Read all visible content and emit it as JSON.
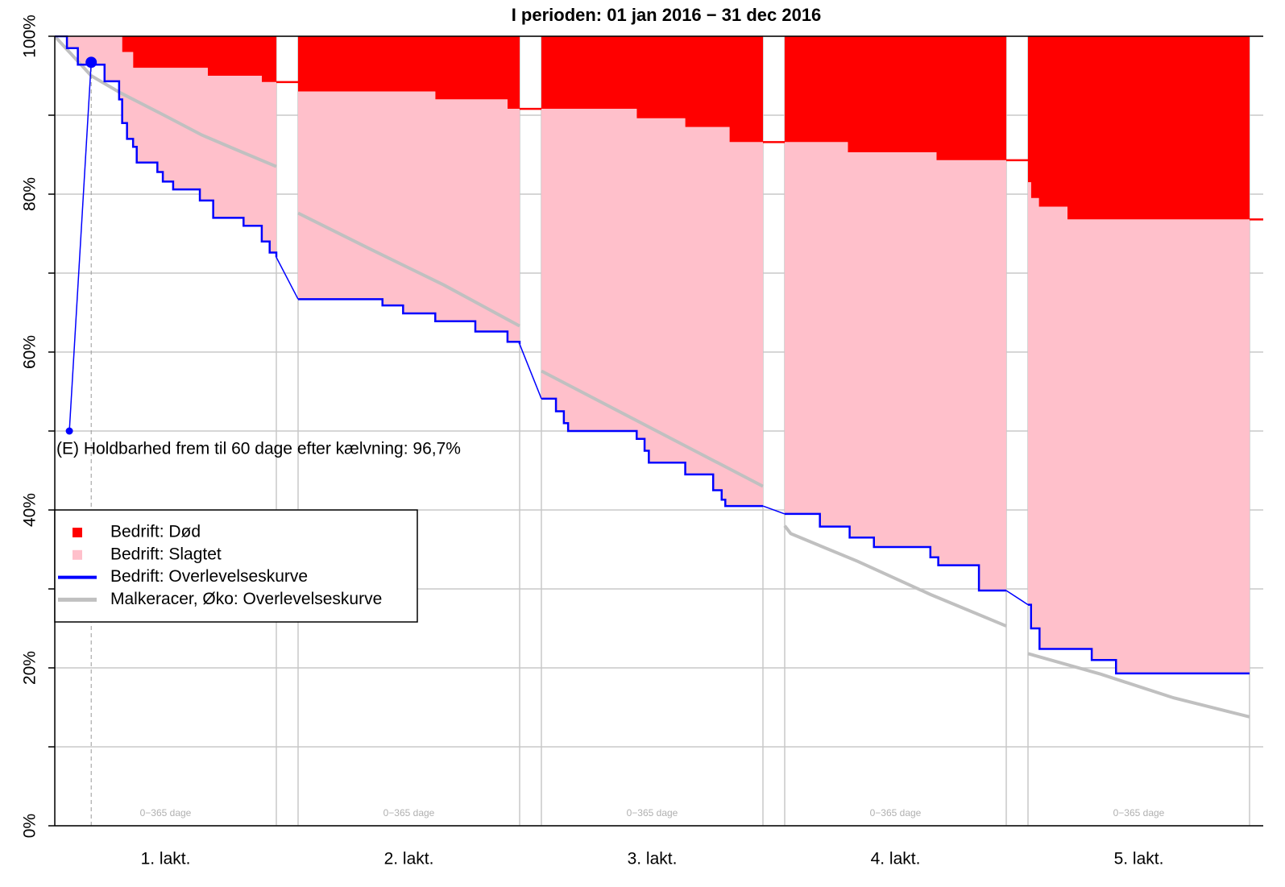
{
  "chart_data": {
    "type": "survival",
    "title": "I perioden: 01 jan 2016 − 31 dec 2016",
    "ylim": [
      0,
      100
    ],
    "yticks": [
      {
        "value": 0,
        "label": "0%"
      },
      {
        "value": 20,
        "label": "20%"
      },
      {
        "value": 40,
        "label": "40%"
      },
      {
        "value": 60,
        "label": "60%"
      },
      {
        "value": 80,
        "label": "80%"
      },
      {
        "value": 100,
        "label": "100%"
      }
    ],
    "minor_yticks": [
      10,
      30,
      50,
      70,
      90
    ],
    "xlim": [
      0,
      365
    ],
    "grid": true,
    "step": true,
    "series": [
      {
        "name": "Bedrift: Død",
        "color": "#ff0000",
        "marker": "square"
      },
      {
        "name": "Bedrift: Slagtet",
        "color": "#ffc0cb",
        "marker": "square"
      },
      {
        "name": "Bedrift: Overlevelseskurve",
        "color": "#0000ff",
        "marker": "line"
      },
      {
        "name": "Malkeracer, Øko: Overlevelseskurve",
        "color": "#c0c0c0",
        "marker": "line"
      }
    ],
    "lactations": [
      {
        "label": "1. lakt.",
        "range_label": "0−365 dage",
        "survival": {
          "days": [
            0,
            20,
            38,
            82,
            106,
            111,
            119,
            129,
            135,
            169,
            178,
            195,
            239,
            261,
            311,
            341,
            354,
            365
          ],
          "values": [
            100,
            98.5,
            96.4,
            94.3,
            92,
            89,
            87,
            86,
            84,
            82.8,
            81.6,
            80.6,
            79.2,
            77,
            76,
            74,
            72.6,
            72
          ]
        },
        "dead": {
          "days": [
            0,
            111,
            129,
            252,
            341
          ],
          "values": [
            100,
            98,
            96,
            95,
            94.2
          ]
        },
        "reference": {
          "days": [
            0,
            60,
            109,
            180,
            242,
            300,
            365
          ],
          "values": [
            100,
            95,
            92.8,
            90,
            87.5,
            85.6,
            83.5
          ]
        }
      },
      {
        "label": "2. lakt.",
        "range_label": "0−365 dage",
        "survival": {
          "days": [
            0,
            139,
            173,
            226,
            292,
            345,
            365
          ],
          "values": [
            66.7,
            65.9,
            64.9,
            63.9,
            62.6,
            61.3,
            61
          ]
        },
        "dead": {
          "days": [
            0,
            226,
            345
          ],
          "values": [
            93,
            92,
            90.8
          ]
        },
        "reference": {
          "days": [
            0,
            120,
            240,
            365
          ],
          "values": [
            77.6,
            73,
            68.5,
            63.3
          ]
        }
      },
      {
        "label": "3. lakt.",
        "range_label": "0−365 dage",
        "survival": {
          "days": [
            0,
            24,
            37,
            44,
            157,
            170,
            177,
            237,
            283,
            297,
            303,
            365
          ],
          "values": [
            54.1,
            52.5,
            51,
            50,
            49,
            47.5,
            46,
            44.5,
            42.5,
            41.3,
            40.5,
            40.5
          ]
        },
        "dead": {
          "days": [
            0,
            157,
            237,
            310
          ],
          "values": [
            90.8,
            89.6,
            88.5,
            86.6
          ]
        },
        "reference": {
          "days": [
            0,
            120,
            240,
            365
          ],
          "values": [
            57.6,
            52.8,
            48,
            43
          ]
        }
      },
      {
        "label": "4. lakt.",
        "range_label": "0−365 dage",
        "survival": {
          "days": [
            0,
            58,
            107,
            147,
            240,
            253,
            320,
            365
          ],
          "values": [
            39.5,
            37.9,
            36.5,
            35.3,
            34,
            33,
            29.8,
            29.8
          ]
        },
        "dead": {
          "days": [
            0,
            104,
            250
          ],
          "values": [
            86.6,
            85.3,
            84.3
          ]
        },
        "reference": {
          "days": [
            0,
            10,
            120,
            240,
            365
          ],
          "values": [
            38,
            37,
            33.5,
            29.3,
            25.3
          ]
        }
      },
      {
        "label": "5. lakt.",
        "range_label": "0−365 dage",
        "survival": {
          "days": [
            0,
            5,
            19,
            105,
            145,
            365
          ],
          "values": [
            28,
            25,
            22.4,
            21,
            19.3,
            19.3
          ]
        },
        "dead": {
          "days": [
            0,
            5,
            18,
            65
          ],
          "values": [
            81.5,
            79.5,
            78.4,
            76.8
          ]
        },
        "reference": {
          "days": [
            0,
            120,
            240,
            365
          ],
          "values": [
            21.8,
            19.2,
            16.2,
            13.8
          ]
        }
      }
    ],
    "annotation": {
      "text": "(E) Holdbarhed frem til 60 dage efter kælvning: 96,7%",
      "day": 60,
      "value": 96.7,
      "start_day": 24,
      "start_value": 50
    }
  }
}
